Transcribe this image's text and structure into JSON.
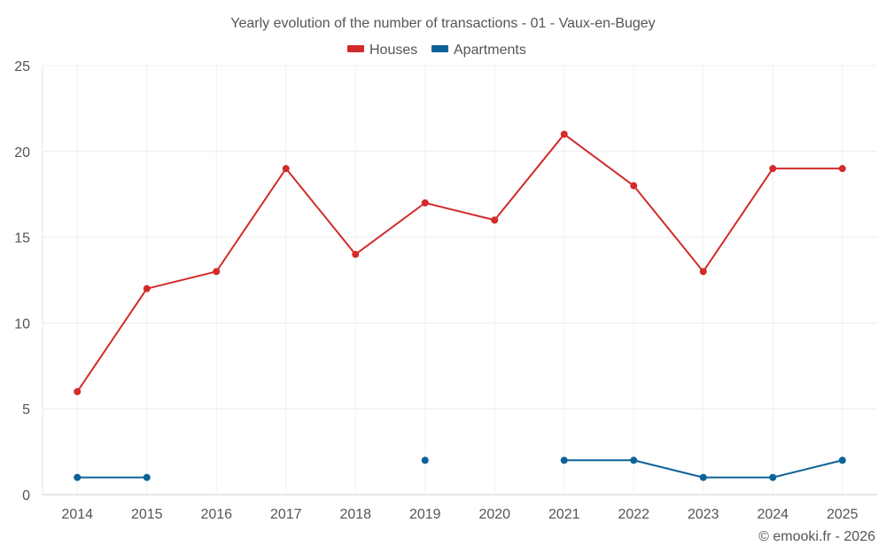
{
  "chart_data": {
    "type": "line",
    "title": "Yearly evolution of the number of transactions - 01 - Vaux-en-Bugey",
    "categories": [
      "2014",
      "2015",
      "2016",
      "2017",
      "2018",
      "2019",
      "2020",
      "2021",
      "2022",
      "2023",
      "2024",
      "2025"
    ],
    "series": [
      {
        "name": "Houses",
        "color": "#d32a2a",
        "values": [
          6,
          12,
          13,
          19,
          14,
          17,
          16,
          21,
          18,
          13,
          19,
          19
        ]
      },
      {
        "name": "Apartments",
        "color": "#0d6199",
        "values": [
          1,
          1,
          null,
          null,
          null,
          2,
          null,
          2,
          2,
          1,
          1,
          2
        ]
      }
    ],
    "ylim": [
      0,
      25
    ],
    "yticks": [
      0,
      5,
      10,
      15,
      20,
      25
    ],
    "xlabel": "",
    "ylabel": "",
    "grid": true,
    "legend": "top-center"
  },
  "credit": "© emooki.fr - 2026"
}
